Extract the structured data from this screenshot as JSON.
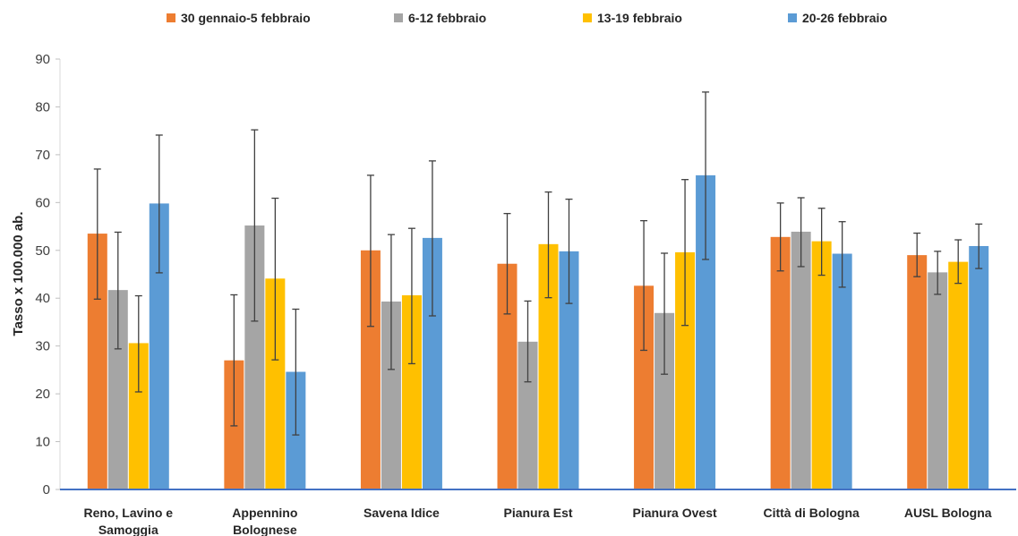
{
  "chart_data": {
    "type": "bar",
    "ylabel": "Tasso x 100.000 ab.",
    "xlabel": "",
    "ylim": [
      0,
      90
    ],
    "yticks": [
      0,
      10,
      20,
      30,
      40,
      50,
      60,
      70,
      80,
      90
    ],
    "grid": false,
    "legend_position": "top",
    "categories": [
      [
        "Reno, Lavino e",
        "Samoggia"
      ],
      [
        "Appennino",
        "Bolognese"
      ],
      [
        "Savena Idice"
      ],
      [
        "Pianura Est"
      ],
      [
        "Pianura Ovest"
      ],
      [
        "Città di Bologna"
      ],
      [
        "AUSL Bologna"
      ]
    ],
    "series": [
      {
        "name": "30 gennaio-5 febbraio",
        "color": "#ED7D31",
        "values": [
          53.5,
          27,
          50,
          47.2,
          42.6,
          52.8,
          49
        ],
        "err_low": [
          39.8,
          13.3,
          34.1,
          36.7,
          29.1,
          45.7,
          44.5
        ],
        "err_high": [
          67,
          40.7,
          65.7,
          57.7,
          56.2,
          59.9,
          53.6
        ]
      },
      {
        "name": "6-12 febbraio",
        "color": "#A5A5A5",
        "values": [
          41.7,
          55.2,
          39.3,
          30.9,
          36.9,
          53.9,
          45.4
        ],
        "err_low": [
          29.4,
          35.2,
          25.1,
          22.5,
          24.1,
          46.6,
          40.8
        ],
        "err_high": [
          53.8,
          75.2,
          53.3,
          39.4,
          49.4,
          61,
          49.8
        ]
      },
      {
        "name": "13-19 febbraio",
        "color": "#FFC000",
        "values": [
          30.6,
          44.1,
          40.6,
          51.3,
          49.6,
          51.9,
          47.6
        ],
        "err_low": [
          20.4,
          27.1,
          26.3,
          40.1,
          34.3,
          44.8,
          43.1
        ],
        "err_high": [
          40.5,
          60.9,
          54.6,
          62.2,
          64.8,
          58.8,
          52.2
        ]
      },
      {
        "name": "20-26 febbraio",
        "color": "#5B9BD5",
        "values": [
          59.8,
          24.6,
          52.6,
          49.8,
          65.7,
          49.3,
          50.9
        ],
        "err_low": [
          45.3,
          11.4,
          36.3,
          38.9,
          48.1,
          42.3,
          46.2
        ],
        "err_high": [
          74.1,
          37.7,
          68.7,
          60.7,
          83.1,
          56,
          55.5
        ]
      }
    ]
  }
}
